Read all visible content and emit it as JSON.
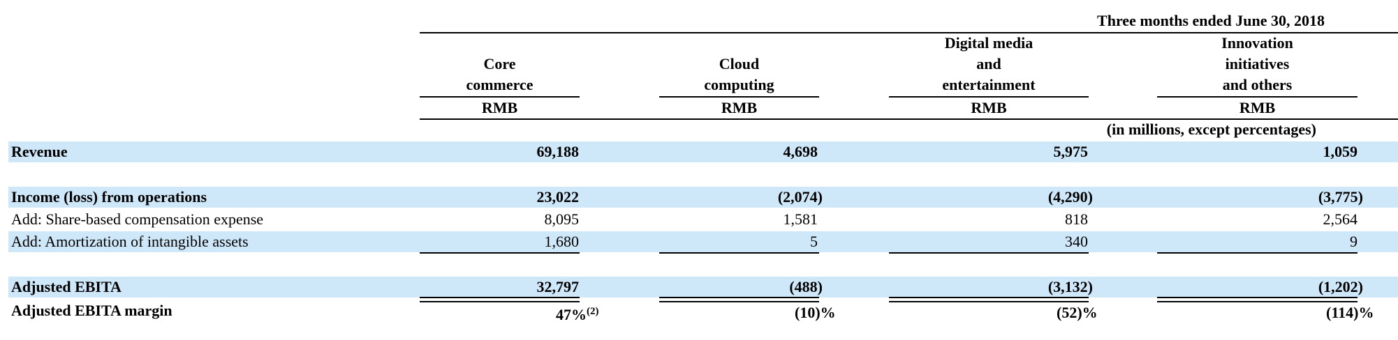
{
  "header": {
    "period": "Three months ended June 30, 2018",
    "note": "(in millions, except percentages)",
    "columns": [
      {
        "l1": "Core",
        "l2": "commerce",
        "l3": "",
        "currency": "RMB"
      },
      {
        "l1": "Cloud",
        "l2": "computing",
        "l3": "",
        "currency": "RMB"
      },
      {
        "l1": "Digital media",
        "l2": "and",
        "l3": "entertainment",
        "currency": "RMB"
      },
      {
        "l1": "Innovation",
        "l2": "initiatives",
        "l3": "and others",
        "currency": "RMB"
      }
    ]
  },
  "rows": {
    "revenue": {
      "label": "Revenue",
      "values": [
        "69,188",
        "4,698",
        "5,975",
        "1,059"
      ]
    },
    "income": {
      "label": "Income (loss) from operations",
      "values": [
        "23,022",
        "(2,074)",
        "(4,290)",
        "(3,775)"
      ]
    },
    "sbc": {
      "label": "Add: Share-based compensation expense",
      "values": [
        "8,095",
        "1,581",
        "818",
        "2,564"
      ]
    },
    "amort": {
      "label": "Add: Amortization of intangible assets",
      "values": [
        "1,680",
        "5",
        "340",
        "9"
      ]
    },
    "ebita": {
      "label": "Adjusted EBITA",
      "values": [
        "32,797",
        "(488)",
        "(3,132)",
        "(1,202)"
      ]
    },
    "margin": {
      "label": "Adjusted EBITA margin",
      "values": [
        "47",
        "(10)",
        "(52)",
        "(114)"
      ],
      "pct": "%",
      "footnote": "(2)"
    }
  },
  "colors": {
    "row_band": "#cfe8f9",
    "text": "#000000"
  }
}
